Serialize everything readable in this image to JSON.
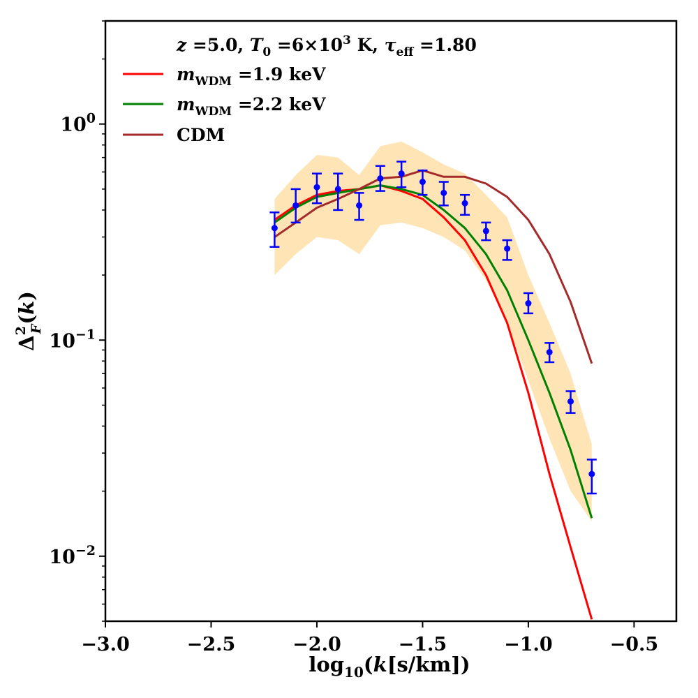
{
  "chart_data": {
    "type": "line",
    "title": "",
    "xlabel": "log10(k[s/km])",
    "ylabel": "Δ²F(k)",
    "xlim": [
      -3.0,
      -0.3
    ],
    "ylim": [
      0.005,
      3.0
    ],
    "yscale": "log",
    "grid": false,
    "legend_position": "top-left",
    "annotation": "z =5.0, T0 =6×10³ K, τeff =1.80",
    "x_ticks": [
      {
        "value": -3.0,
        "label": "−3.0"
      },
      {
        "value": -2.5,
        "label": "−2.5"
      },
      {
        "value": -2.0,
        "label": "−2.0"
      },
      {
        "value": -1.5,
        "label": "−1.5"
      },
      {
        "value": -1.0,
        "label": "−1.0"
      },
      {
        "value": -0.5,
        "label": "−0.5"
      }
    ],
    "y_ticks": [
      {
        "value": 1.0,
        "base": "10",
        "exp": "0"
      },
      {
        "value": 0.1,
        "base": "10",
        "exp": "−1"
      },
      {
        "value": 0.01,
        "base": "10",
        "exp": "−2"
      }
    ],
    "series": [
      {
        "name": "mWDM =1.9 keV",
        "legend_main": "m",
        "legend_sub": "WDM",
        "legend_rest": " =1.9 keV",
        "color": "#ff0000",
        "x": [
          -2.2,
          -2.1,
          -2.0,
          -1.9,
          -1.8,
          -1.7,
          -1.6,
          -1.5,
          -1.4,
          -1.3,
          -1.2,
          -1.1,
          -1.0,
          -0.9,
          -0.8,
          -0.7
        ],
        "values": [
          0.36,
          0.42,
          0.47,
          0.49,
          0.5,
          0.52,
          0.49,
          0.45,
          0.37,
          0.29,
          0.2,
          0.12,
          0.057,
          0.024,
          0.011,
          0.0051
        ]
      },
      {
        "name": "mWDM =2.2 keV",
        "legend_main": "m",
        "legend_sub": "WDM",
        "legend_rest": " =2.2 keV",
        "color": "#008000",
        "x": [
          -2.2,
          -2.1,
          -2.0,
          -1.9,
          -1.8,
          -1.7,
          -1.6,
          -1.5,
          -1.4,
          -1.3,
          -1.2,
          -1.1,
          -1.0,
          -0.9,
          -0.8,
          -0.7
        ],
        "values": [
          0.35,
          0.41,
          0.46,
          0.48,
          0.5,
          0.52,
          0.5,
          0.47,
          0.4,
          0.33,
          0.25,
          0.17,
          0.1,
          0.057,
          0.031,
          0.015
        ]
      },
      {
        "name": "CDM",
        "legend_main": "CDM",
        "legend_sub": "",
        "legend_rest": "",
        "color": "#a52a2a",
        "x": [
          -2.2,
          -2.1,
          -2.0,
          -1.9,
          -1.8,
          -1.7,
          -1.6,
          -1.5,
          -1.4,
          -1.3,
          -1.2,
          -1.1,
          -1.0,
          -0.9,
          -0.8,
          -0.7
        ],
        "values": [
          0.3,
          0.35,
          0.41,
          0.45,
          0.5,
          0.56,
          0.57,
          0.61,
          0.57,
          0.57,
          0.53,
          0.46,
          0.36,
          0.25,
          0.15,
          0.078
        ]
      }
    ],
    "data_points": {
      "color": "#0000ff",
      "x": [
        -2.2,
        -2.1,
        -2.0,
        -1.9,
        -1.8,
        -1.7,
        -1.6,
        -1.5,
        -1.4,
        -1.3,
        -1.2,
        -1.1,
        -1.0,
        -0.9,
        -0.8,
        -0.7
      ],
      "y": [
        0.33,
        0.42,
        0.51,
        0.5,
        0.42,
        0.56,
        0.59,
        0.54,
        0.48,
        0.43,
        0.32,
        0.265,
        0.148,
        0.088,
        0.052,
        0.024
      ],
      "y_low": [
        0.27,
        0.35,
        0.43,
        0.4,
        0.36,
        0.49,
        0.51,
        0.47,
        0.42,
        0.38,
        0.29,
        0.235,
        0.133,
        0.079,
        0.046,
        0.0195
      ],
      "y_high": [
        0.39,
        0.5,
        0.59,
        0.59,
        0.48,
        0.64,
        0.67,
        0.61,
        0.54,
        0.47,
        0.35,
        0.29,
        0.165,
        0.097,
        0.058,
        0.028
      ]
    },
    "band": {
      "color": "#ffe4b5",
      "x": [
        -2.2,
        -2.1,
        -2.0,
        -1.9,
        -1.8,
        -1.7,
        -1.6,
        -1.5,
        -1.4,
        -1.3,
        -1.2,
        -1.1,
        -1.0,
        -0.9,
        -0.8,
        -0.7
      ],
      "lower": [
        0.2,
        0.25,
        0.3,
        0.29,
        0.25,
        0.34,
        0.35,
        0.33,
        0.3,
        0.26,
        0.19,
        0.12,
        0.065,
        0.035,
        0.02,
        0.0145
      ],
      "upper": [
        0.45,
        0.58,
        0.72,
        0.7,
        0.58,
        0.79,
        0.83,
        0.74,
        0.65,
        0.59,
        0.47,
        0.37,
        0.2,
        0.12,
        0.07,
        0.033
      ]
    }
  }
}
